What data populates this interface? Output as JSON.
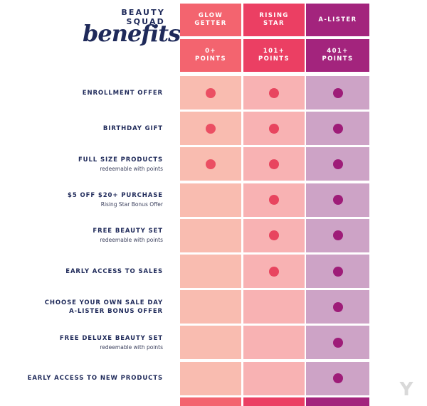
{
  "brand": {
    "title_top": "BEAUTY SQUAD",
    "title_script": "benefits"
  },
  "colors": {
    "col1_header": "#f3646f",
    "col2_header": "#eb3f63",
    "col3_header": "#a3247d",
    "col1_cell": "#f9bcb0",
    "col2_cell": "#f8b2b3",
    "col3_cell": "#cda3c6",
    "col1_dot": "#eb4f63",
    "col2_dot": "#e8455f",
    "col3_dot": "#9e1c78",
    "label_text": "#1f2a5a"
  },
  "tiers": [
    {
      "name": "GLOW\nGETTER",
      "points": "0+\nPOINTS"
    },
    {
      "name": "RISING\nSTAR",
      "points": "101+\nPOINTS"
    },
    {
      "name": "A-LISTER",
      "points": "401+\nPOINTS"
    }
  ],
  "benefits": [
    {
      "label": "ENROLLMENT OFFER",
      "sub": "",
      "tiers": [
        true,
        true,
        true
      ]
    },
    {
      "label": "BIRTHDAY GIFT",
      "sub": "",
      "tiers": [
        true,
        true,
        true
      ]
    },
    {
      "label": "FULL SIZE PRODUCTS",
      "sub": "redeemable with points",
      "tiers": [
        true,
        true,
        true
      ]
    },
    {
      "label": "$5 OFF $20+ PURCHASE",
      "sub": "Rising Star Bonus Offer",
      "tiers": [
        false,
        true,
        true
      ]
    },
    {
      "label": "FREE BEAUTY SET",
      "sub": "redeemable with points",
      "tiers": [
        false,
        true,
        true
      ]
    },
    {
      "label": "EARLY ACCESS TO SALES",
      "sub": "",
      "tiers": [
        false,
        true,
        true
      ]
    },
    {
      "label": "CHOOSE YOUR OWN SALE DAY\nA-LISTER BONUS OFFER",
      "sub": "",
      "tiers": [
        false,
        false,
        true
      ]
    },
    {
      "label": "FREE DELUXE BEAUTY SET",
      "sub": "redeemable with points",
      "tiers": [
        false,
        false,
        true
      ]
    },
    {
      "label": "EARLY ACCESS TO NEW PRODUCTS",
      "sub": "",
      "tiers": [
        false,
        false,
        true
      ]
    }
  ],
  "watermark": "Y"
}
